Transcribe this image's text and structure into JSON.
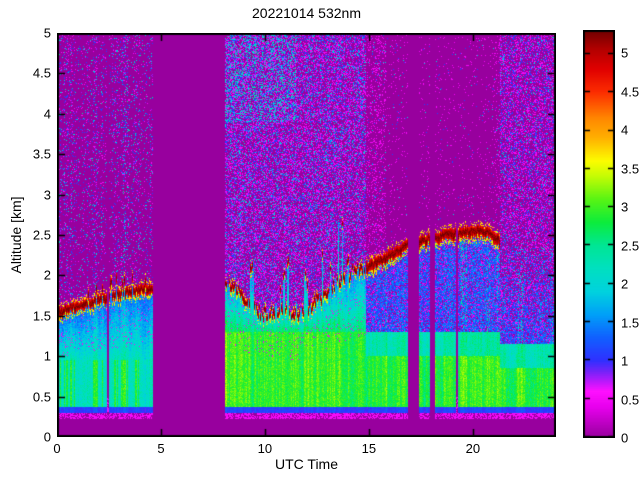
{
  "chart_data": {
    "type": "heatmap",
    "title": "20221014 532nm",
    "xlabel": "UTC Time",
    "ylabel": "Altitude [km]",
    "xlim": [
      0,
      24
    ],
    "ylim": [
      0,
      5
    ],
    "xticks": [
      0,
      5,
      10,
      15,
      20
    ],
    "yticks": [
      0,
      0.5,
      1,
      1.5,
      2,
      2.5,
      3,
      3.5,
      4,
      4.5,
      5
    ],
    "grid": false,
    "legend": "none",
    "colorbar": {
      "position": "right",
      "ticks": [
        0,
        0.5,
        1,
        1.5,
        2,
        2.5,
        3,
        3.5,
        4,
        4.5,
        5
      ],
      "vmin": 0,
      "vmax": 5.3,
      "colormap_stops": [
        [
          0.0,
          "#98009E"
        ],
        [
          0.4,
          "#E800EE"
        ],
        [
          0.6,
          "#FF10FF"
        ],
        [
          0.85,
          "#7A22F8"
        ],
        [
          1.0,
          "#3030FF"
        ],
        [
          1.3,
          "#1160FF"
        ],
        [
          1.6,
          "#00A0F8"
        ],
        [
          1.9,
          "#00D2DE"
        ],
        [
          2.2,
          "#00E0C0"
        ],
        [
          2.5,
          "#00E694"
        ],
        [
          2.8,
          "#0CEC3C"
        ],
        [
          3.1,
          "#58F414"
        ],
        [
          3.4,
          "#C4FC04"
        ],
        [
          3.6,
          "#FCFC00"
        ],
        [
          3.9,
          "#FFB000"
        ],
        [
          4.15,
          "#FF8800"
        ],
        [
          4.5,
          "#FC2C00"
        ],
        [
          4.8,
          "#E00000"
        ],
        [
          5.05,
          "#B40000"
        ],
        [
          5.3,
          "#700000"
        ]
      ]
    },
    "background_value_color": "#98009E",
    "surface_return_band_km": [
      0.24,
      0.37
    ],
    "data_gaps_utc": [
      [
        2.42,
        2.5
      ],
      [
        4.62,
        8.08
      ],
      [
        16.9,
        17.4
      ],
      [
        17.92,
        18.16
      ],
      [
        19.17,
        19.3
      ]
    ],
    "boundary_layer_top_km": [
      [
        0.0,
        1.6
      ],
      [
        0.8,
        1.66
      ],
      [
        1.6,
        1.72
      ],
      [
        2.4,
        1.78
      ],
      [
        3.2,
        1.84
      ],
      [
        4.0,
        1.88
      ],
      [
        4.6,
        1.9
      ],
      [
        8.1,
        1.93
      ],
      [
        8.8,
        1.83
      ],
      [
        9.6,
        1.6
      ],
      [
        10.2,
        1.55
      ],
      [
        10.8,
        1.62
      ],
      [
        11.4,
        1.56
      ],
      [
        12.0,
        1.62
      ],
      [
        12.6,
        1.74
      ],
      [
        13.2,
        1.88
      ],
      [
        14.0,
        2.04
      ],
      [
        14.85,
        2.16
      ],
      [
        15.5,
        2.24
      ],
      [
        16.2,
        2.34
      ],
      [
        16.9,
        2.44
      ],
      [
        17.4,
        2.47
      ],
      [
        18.0,
        2.52
      ],
      [
        18.6,
        2.56
      ],
      [
        19.2,
        2.58
      ],
      [
        19.8,
        2.62
      ],
      [
        20.4,
        2.62
      ],
      [
        20.9,
        2.57
      ],
      [
        21.3,
        2.5
      ],
      [
        22.0,
        2.38
      ],
      [
        23.0,
        2.3
      ],
      [
        24.0,
        2.35
      ]
    ],
    "render": {
      "seed": 20221014,
      "segments_utc": {
        "left_end": 4.62,
        "mid_end": 14.85
      },
      "spike_region_utc": [
        9.3,
        14.4
      ],
      "cap": {
        "end_utc": 21.3,
        "value_center": 5.25,
        "value_edge": 4.55,
        "fringe_value": 3.5
      },
      "noise": {
        "A": {
          "base": 0.07,
          "mod": 0.32
        },
        "B": {
          "base": 0.46,
          "top_boost": 0.17,
          "top_alt_km": 3.9,
          "cyan_until_utc": 11.5
        },
        "C": {
          "dense": 0.2,
          "dense_until_utc": 15.8,
          "sparse": 0.045
        },
        "D": {
          "base": 0.4
        }
      },
      "palettes": {
        "A": [
          [
            0.5,
            30
          ],
          [
            1.1,
            30
          ],
          [
            0.8,
            12
          ],
          [
            1.6,
            10
          ],
          [
            1.9,
            14
          ],
          [
            2.4,
            4
          ]
        ],
        "B": [
          [
            0.5,
            40
          ],
          [
            1.1,
            25
          ],
          [
            0.8,
            14
          ],
          [
            1.9,
            15
          ],
          [
            1.5,
            6
          ]
        ],
        "Bhi": [
          [
            0.5,
            26
          ],
          [
            1.9,
            30
          ],
          [
            1.1,
            22
          ],
          [
            2.4,
            10
          ],
          [
            0.8,
            12
          ]
        ],
        "C": [
          [
            0.5,
            82
          ],
          [
            1.1,
            12
          ],
          [
            1.9,
            6
          ]
        ],
        "D": [
          [
            0.5,
            48
          ],
          [
            1.1,
            32
          ],
          [
            0.8,
            10
          ],
          [
            1.9,
            10
          ]
        ]
      }
    }
  }
}
